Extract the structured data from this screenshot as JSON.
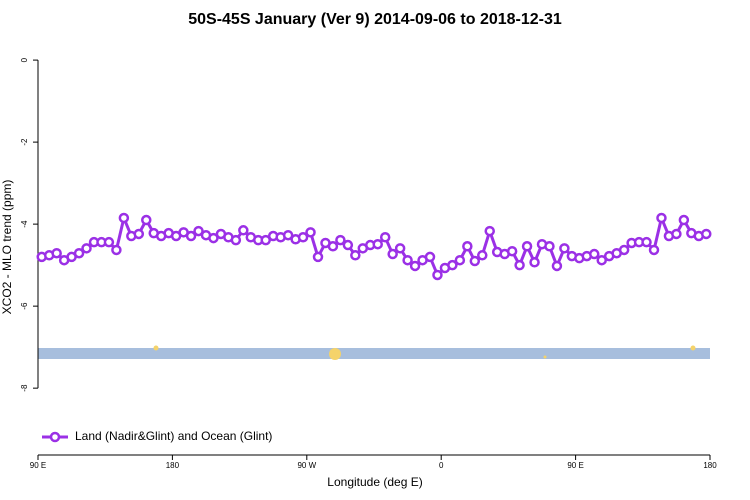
{
  "chart_data": {
    "type": "line",
    "title": "50S-45S January (Ver 9)   2014-09-06 to 2018-12-31",
    "x_label": "Longitude (deg E)",
    "y_label": "XCO2 - MLO trend (ppm)",
    "xlim": [
      90,
      540
    ],
    "ylim": [
      -9.63,
      0.49
    ],
    "xticks": [
      {
        "value": 90,
        "label": "90 E"
      },
      {
        "value": 180,
        "label": "180"
      },
      {
        "value": 270,
        "label": "90 W"
      },
      {
        "value": 360,
        "label": "0"
      },
      {
        "value": 450,
        "label": "90 E"
      },
      {
        "value": 540,
        "label": "180"
      }
    ],
    "yticks": [
      0,
      -2,
      -4,
      -6,
      -8
    ],
    "legend_position": "bottom-left",
    "series": [
      {
        "name": "Land (Nadir&Glint) and Ocean (Glint)",
        "color": "#9b30e6",
        "x": [
          92.5,
          97.5,
          102.5,
          107.5,
          112.5,
          117.5,
          122.5,
          127.5,
          132.5,
          137.5,
          142.5,
          147.5,
          152.5,
          157.5,
          162.5,
          167.5,
          172.5,
          177.5,
          182.5,
          187.5,
          192.5,
          197.5,
          202.5,
          207.5,
          212.5,
          217.5,
          222.5,
          227.5,
          232.5,
          237.5,
          242.5,
          247.5,
          252.5,
          257.5,
          262.5,
          267.5,
          272.5,
          277.5,
          282.5,
          287.5,
          292.5,
          297.5,
          302.5,
          307.5,
          312.5,
          317.5,
          322.5,
          327.5,
          332.5,
          337.5,
          342.5,
          347.5,
          352.5,
          357.5,
          362.5,
          367.5,
          372.5,
          377.5,
          382.5,
          387.5,
          392.5,
          397.5,
          402.5,
          407.5,
          412.5,
          417.5,
          422.5,
          427.5,
          432.5,
          437.5,
          442.5,
          447.5,
          452.5,
          457.5,
          462.5,
          467.5,
          472.5,
          477.5,
          482.5,
          487.5,
          492.5,
          497.5,
          502.5,
          507.5,
          512.5,
          517.5,
          522.5,
          527.5,
          532.5,
          537.5
        ],
        "values": [
          -4.8,
          -4.76,
          -4.71,
          -4.88,
          -4.8,
          -4.71,
          -4.59,
          -4.44,
          -4.44,
          -4.44,
          -4.63,
          -3.85,
          -4.29,
          -4.24,
          -3.9,
          -4.22,
          -4.29,
          -4.22,
          -4.29,
          -4.2,
          -4.29,
          -4.17,
          -4.27,
          -4.34,
          -4.24,
          -4.32,
          -4.39,
          -4.15,
          -4.32,
          -4.39,
          -4.39,
          -4.29,
          -4.32,
          -4.27,
          -4.37,
          -4.32,
          -4.2,
          -4.8,
          -4.46,
          -4.54,
          -4.39,
          -4.51,
          -4.76,
          -4.59,
          -4.51,
          -4.49,
          -4.32,
          -4.73,
          -4.59,
          -4.88,
          -5.02,
          -4.88,
          -4.8,
          -5.24,
          -5.07,
          -5.0,
          -4.88,
          -4.54,
          -4.9,
          -4.76,
          -4.17,
          -4.68,
          -4.73,
          -4.66,
          -5.0,
          -4.54,
          -4.93,
          -4.49,
          -4.54,
          -5.02,
          -4.59,
          -4.78,
          -4.83,
          -4.78,
          -4.73,
          -4.88,
          -4.78,
          -4.71,
          -4.63,
          -4.46,
          -4.44,
          -4.44,
          -4.63,
          -3.85,
          -4.29,
          -4.24,
          -3.9,
          -4.22,
          -4.29,
          -4.24
        ]
      }
    ]
  }
}
